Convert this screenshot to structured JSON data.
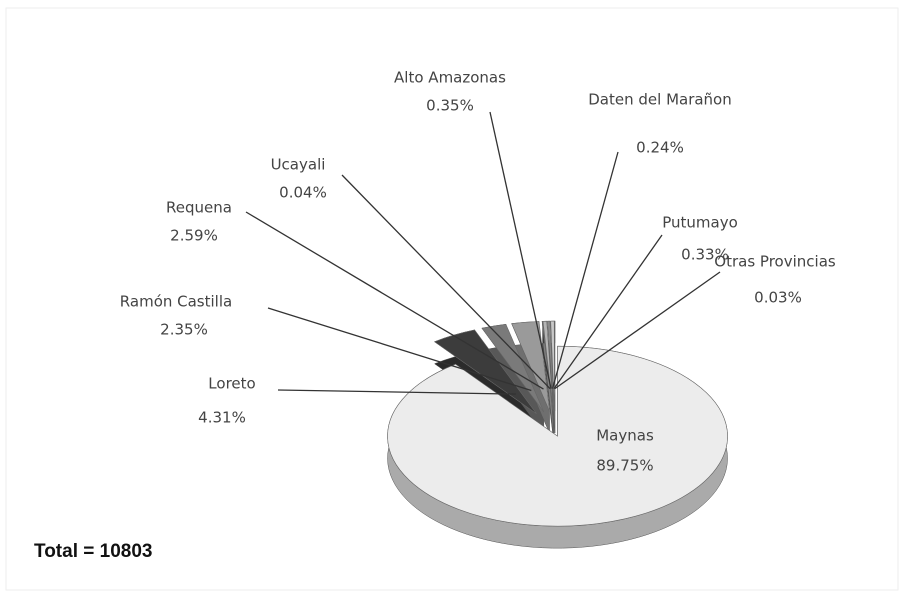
{
  "chart_data": {
    "type": "pie",
    "categories": [
      "Maynas",
      "Loreto",
      "Ramón Castilla",
      "Requena",
      "Ucayali",
      "Alto Amazonas",
      "Daten del Marañon",
      "Putumayo",
      "Otras Provincias"
    ],
    "values": [
      89.75,
      4.31,
      2.35,
      2.59,
      0.04,
      0.35,
      0.24,
      0.33,
      0.03
    ],
    "value_labels": [
      "89.75%",
      "4.31%",
      "2.35%",
      "2.59%",
      "0.04%",
      "0.35%",
      "0.24%",
      "0.33%",
      "0.03%"
    ],
    "colors": [
      "#ececec",
      "#3c3c3c",
      "#7a7a7a",
      "#9a9a9a",
      "#555555",
      "#b4b4b4",
      "#8a8a8a",
      "#c8c8c8",
      "#666666"
    ],
    "annotation": "Total = 10803"
  }
}
